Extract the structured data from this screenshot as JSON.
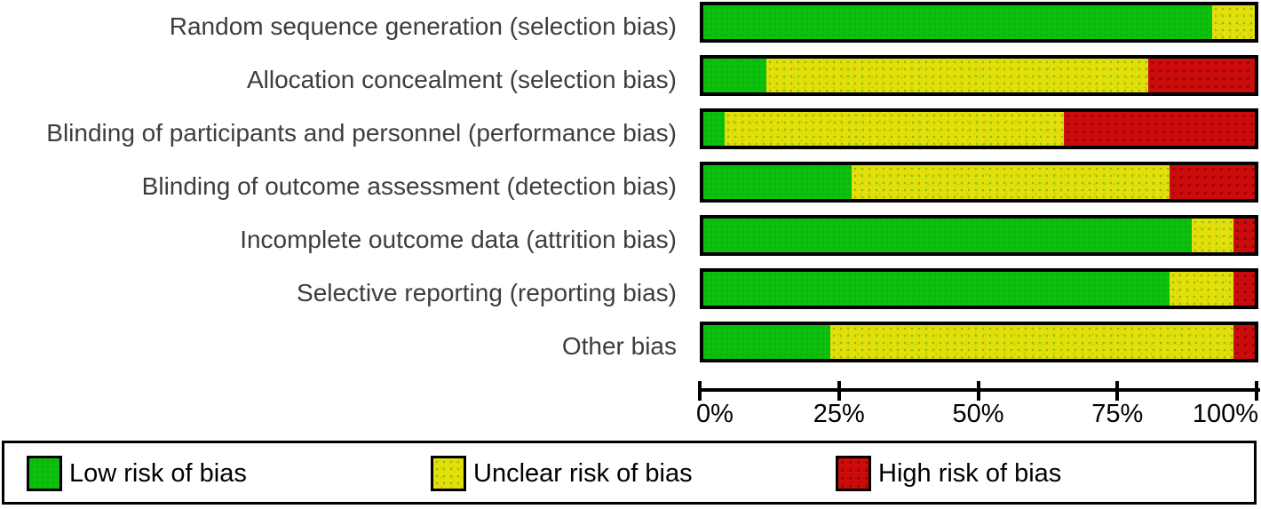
{
  "figure": {
    "background": "#ffffff",
    "kind": "risk-of-bias-graph"
  },
  "chart_data": {
    "type": "bar",
    "orientation": "horizontal-stacked",
    "title": "",
    "xlabel": "",
    "ylabel": "",
    "xlim": [
      0,
      100
    ],
    "grid": false,
    "legend_position": "bottom",
    "categories": [
      "Random sequence generation (selection bias)",
      "Allocation concealment (selection bias)",
      "Blinding of participants and personnel (performance bias)",
      "Blinding of outcome assessment (detection bias)",
      "Incomplete outcome data (attrition bias)",
      "Selective reporting (reporting bias)",
      "Other bias"
    ],
    "series": [
      {
        "name": "Low risk of bias",
        "key": "low",
        "color": "#0dc00d",
        "values": [
          92.3,
          11.5,
          3.8,
          26.9,
          88.5,
          84.6,
          23.1
        ]
      },
      {
        "name": "Unclear risk of bias",
        "key": "unclear",
        "color": "#e4de0a",
        "values": [
          7.7,
          69.2,
          61.6,
          57.7,
          7.7,
          11.6,
          73.1
        ]
      },
      {
        "name": "High risk of bias",
        "key": "high",
        "color": "#cc0b0b",
        "values": [
          0,
          19.3,
          34.6,
          15.4,
          3.8,
          3.8,
          3.8
        ]
      }
    ],
    "x_ticks": [
      {
        "label": "0%",
        "pos": 0,
        "align": "left"
      },
      {
        "label": "25%",
        "pos": 25,
        "align": "center"
      },
      {
        "label": "50%",
        "pos": 50,
        "align": "center"
      },
      {
        "label": "75%",
        "pos": 75,
        "align": "center"
      },
      {
        "label": "100%",
        "pos": 100,
        "align": "right"
      }
    ]
  },
  "legend": {
    "items": [
      {
        "key": "low",
        "label": "Low risk of bias",
        "color": "#0dc00d",
        "x": 25
      },
      {
        "key": "unclear",
        "label": "Unclear risk of bias",
        "color": "#e4de0a",
        "x": 480
      },
      {
        "key": "high",
        "label": "High risk of bias",
        "color": "#cc0b0b",
        "x": 936
      }
    ]
  },
  "layout_colors": {
    "bar_border": "#000000",
    "axis": "#000000",
    "category_text": "#3d3d3d"
  }
}
